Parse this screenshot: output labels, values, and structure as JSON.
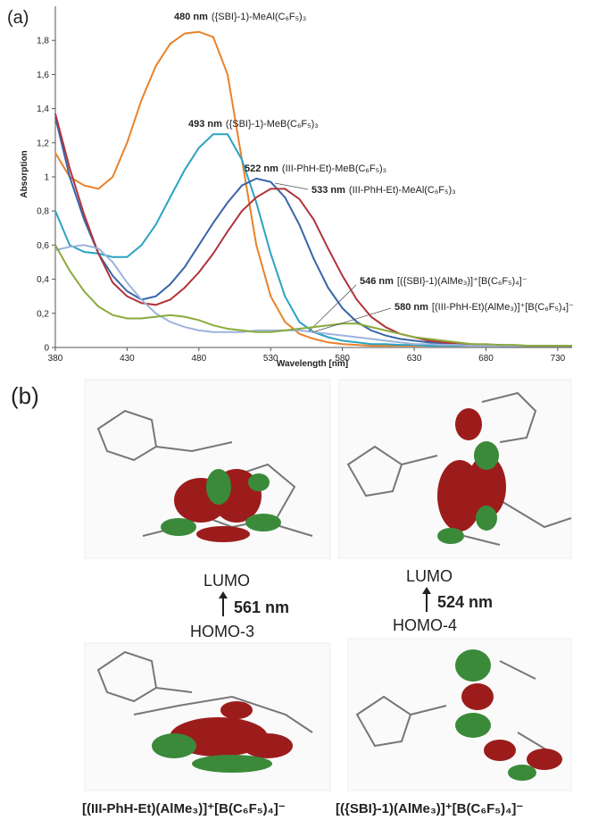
{
  "chart_data": {
    "type": "line",
    "panel_label": "(a)",
    "x_label": "Wavelength [nm]",
    "y_label": "Absorption",
    "x": [
      380,
      390,
      400,
      410,
      420,
      430,
      440,
      450,
      460,
      470,
      480,
      490,
      500,
      510,
      520,
      530,
      540,
      550,
      560,
      570,
      580,
      590,
      600,
      610,
      620,
      630,
      640,
      650,
      660,
      670,
      680,
      690,
      700,
      710,
      720,
      730,
      740
    ],
    "series": [
      {
        "name": "({SBI}-1)-MeAl(C₆F₅)₃",
        "peak_label": "480 nm",
        "color": "#e8822a",
        "values": [
          1.14,
          1.0,
          0.95,
          0.93,
          1.0,
          1.2,
          1.45,
          1.65,
          1.78,
          1.84,
          1.85,
          1.82,
          1.6,
          1.1,
          0.6,
          0.3,
          0.15,
          0.08,
          0.05,
          0.03,
          0.02,
          0.015,
          0.01,
          0.01,
          0.01,
          0.01,
          0.01,
          0.01,
          0.01,
          0.01,
          0.01,
          0.01,
          0.01,
          0.01,
          0.01,
          0.01,
          0.01
        ]
      },
      {
        "name": "({SBI}-1)-MeB(C₆F₅)₃",
        "peak_label": "493 nm",
        "color": "#2ba3c2",
        "values": [
          0.8,
          0.6,
          0.56,
          0.55,
          0.53,
          0.53,
          0.6,
          0.72,
          0.88,
          1.04,
          1.17,
          1.25,
          1.25,
          1.1,
          0.85,
          0.55,
          0.3,
          0.15,
          0.09,
          0.06,
          0.04,
          0.03,
          0.02,
          0.02,
          0.015,
          0.015,
          0.01,
          0.01,
          0.01,
          0.01,
          0.01,
          0.01,
          0.01,
          0.01,
          0.01,
          0.01,
          0.01
        ]
      },
      {
        "name": "(III-PhH-Et)-MeB(C₆F₅)₃",
        "peak_label": "522 nm",
        "color": "#3a64a8",
        "values": [
          1.35,
          1.0,
          0.75,
          0.55,
          0.42,
          0.33,
          0.28,
          0.3,
          0.37,
          0.47,
          0.6,
          0.73,
          0.85,
          0.95,
          0.99,
          0.97,
          0.88,
          0.72,
          0.52,
          0.35,
          0.23,
          0.15,
          0.1,
          0.07,
          0.05,
          0.04,
          0.03,
          0.02,
          0.02,
          0.015,
          0.015,
          0.01,
          0.01,
          0.01,
          0.01,
          0.01,
          0.01
        ]
      },
      {
        "name": "(III-PhH-Et)-MeAl(C₆F₅)₃",
        "peak_label": "533 nm",
        "color": "#b0343a",
        "values": [
          1.37,
          1.05,
          0.78,
          0.55,
          0.38,
          0.3,
          0.26,
          0.25,
          0.28,
          0.35,
          0.44,
          0.55,
          0.68,
          0.8,
          0.88,
          0.93,
          0.93,
          0.87,
          0.75,
          0.58,
          0.42,
          0.28,
          0.18,
          0.12,
          0.08,
          0.06,
          0.04,
          0.03,
          0.02,
          0.02,
          0.015,
          0.015,
          0.01,
          0.01,
          0.01,
          0.01,
          0.01
        ]
      },
      {
        "name": "[({SBI}-1)(AlMe₃)]⁺[B(C₆F₅)₄]⁻",
        "peak_label": "546 nm",
        "color": "#9db3dc",
        "values": [
          0.57,
          0.59,
          0.6,
          0.58,
          0.5,
          0.38,
          0.28,
          0.2,
          0.15,
          0.12,
          0.1,
          0.09,
          0.09,
          0.09,
          0.1,
          0.1,
          0.1,
          0.1,
          0.09,
          0.08,
          0.07,
          0.06,
          0.05,
          0.04,
          0.03,
          0.02,
          0.02,
          0.015,
          0.015,
          0.01,
          0.01,
          0.01,
          0.01,
          0.01,
          0.01,
          0.01,
          0.01
        ]
      },
      {
        "name": "[(III-PhH-Et)(AlMe₃)]⁺[B(C₆F₅)₄]⁻",
        "peak_label": "580 nm",
        "color": "#8aaa3c",
        "values": [
          0.6,
          0.45,
          0.33,
          0.24,
          0.19,
          0.17,
          0.17,
          0.18,
          0.19,
          0.18,
          0.16,
          0.13,
          0.11,
          0.1,
          0.09,
          0.09,
          0.1,
          0.11,
          0.12,
          0.13,
          0.14,
          0.14,
          0.12,
          0.1,
          0.08,
          0.06,
          0.05,
          0.04,
          0.03,
          0.02,
          0.02,
          0.015,
          0.015,
          0.01,
          0.01,
          0.01,
          0.01
        ]
      }
    ],
    "xlim": [
      380,
      740
    ],
    "xticks": [
      380,
      430,
      480,
      530,
      580,
      630,
      680,
      730
    ],
    "ylim": [
      0,
      2
    ],
    "yticks": [
      0,
      {
        "value": 0.2,
        "label": "0,2"
      },
      {
        "value": 0.4,
        "label": "0,4"
      },
      {
        "value": 0.6,
        "label": "0,6"
      },
      {
        "value": 0.8,
        "label": "0,8"
      },
      1,
      {
        "value": 1.2,
        "label": "1,2"
      },
      {
        "value": 1.4,
        "label": "1,4"
      },
      {
        "value": 1.6,
        "label": "1,6"
      },
      {
        "value": 1.8,
        "label": "1,8"
      }
    ],
    "grid": false
  },
  "panel_b": {
    "label": "(b)",
    "left": {
      "upper": "LUMO",
      "gap": "561 nm",
      "lower": "HOMO-3",
      "caption": "[(III-PhH-Et)(AlMe₃)]⁺[B(C₆F₅)₄]⁻"
    },
    "right": {
      "upper": "LUMO",
      "gap": "524 nm",
      "lower": "HOMO-4",
      "caption": "[({SBI}-1)(AlMe₃)]⁺[B(C₆F₅)₄]⁻"
    }
  }
}
